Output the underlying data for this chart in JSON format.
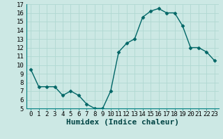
{
  "x": [
    0,
    1,
    2,
    3,
    4,
    5,
    6,
    7,
    8,
    9,
    10,
    11,
    12,
    13,
    14,
    15,
    16,
    17,
    18,
    19,
    20,
    21,
    22,
    23
  ],
  "y": [
    9.5,
    7.5,
    7.5,
    7.5,
    6.5,
    7.0,
    6.5,
    5.5,
    5.0,
    5.0,
    7.0,
    11.5,
    12.5,
    13.0,
    15.5,
    16.2,
    16.5,
    16.0,
    16.0,
    14.5,
    12.0,
    12.0,
    11.5,
    10.5
  ],
  "xlabel": "Humidex (Indice chaleur)",
  "ylim": [
    5,
    17
  ],
  "xlim": [
    -0.5,
    23.5
  ],
  "yticks": [
    5,
    6,
    7,
    8,
    9,
    10,
    11,
    12,
    13,
    14,
    15,
    16,
    17
  ],
  "xticks": [
    0,
    1,
    2,
    3,
    4,
    5,
    6,
    7,
    8,
    9,
    10,
    11,
    12,
    13,
    14,
    15,
    16,
    17,
    18,
    19,
    20,
    21,
    22,
    23
  ],
  "xtick_labels": [
    "0",
    "1",
    "2",
    "3",
    "4",
    "5",
    "6",
    "7",
    "8",
    "9",
    "10",
    "11",
    "12",
    "13",
    "14",
    "15",
    "16",
    "17",
    "18",
    "19",
    "20",
    "21",
    "22",
    "23"
  ],
  "line_color": "#006666",
  "marker": "D",
  "marker_size": 2.5,
  "bg_color": "#cce8e4",
  "grid_color": "#b0d8d2",
  "xlabel_fontsize": 8,
  "tick_fontsize": 6.5,
  "lw": 1.0
}
